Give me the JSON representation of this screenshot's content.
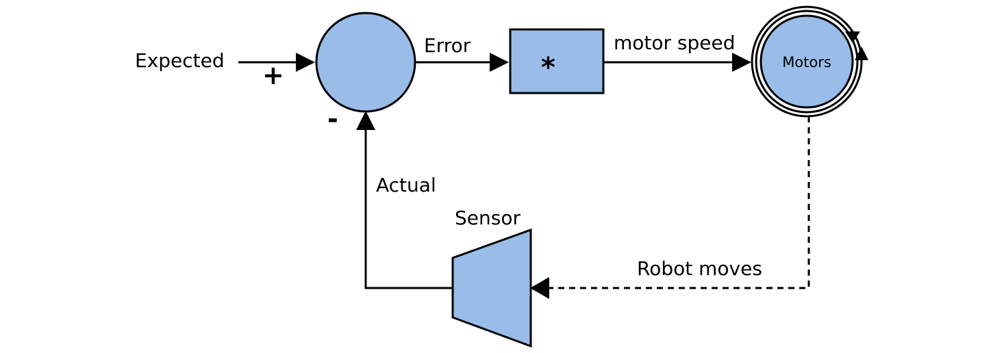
{
  "diagram": {
    "labels": {
      "expected": "Expected",
      "plus": "+",
      "minus": "-",
      "error": "Error",
      "multiply": "*",
      "motor_speed": "motor speed",
      "motors": "Motors",
      "actual": "Actual",
      "sensor": "Sensor",
      "robot_moves": "Robot moves"
    },
    "colors": {
      "node_fill": "#99bde8",
      "stroke": "#000000",
      "background": "#ffffff"
    }
  }
}
